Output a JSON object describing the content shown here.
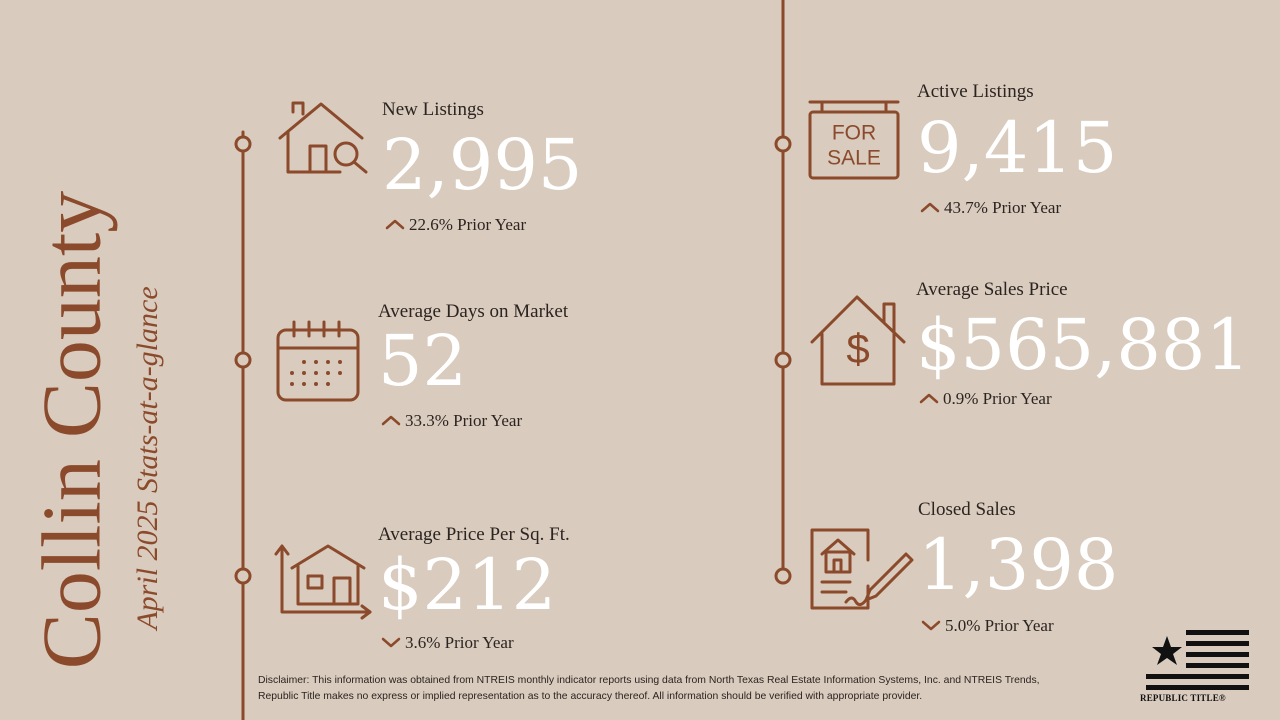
{
  "header": {
    "title": "Collin County",
    "subtitle": "April 2025 Stats-at-a-glance"
  },
  "stats": [
    {
      "label": "New Listings",
      "value": "2,995",
      "change": "22.6% Prior Year",
      "direction": "up"
    },
    {
      "label": "Average Days on Market",
      "value": "52",
      "change": "33.3% Prior Year",
      "direction": "up"
    },
    {
      "label": "Average Price Per Sq. Ft.",
      "value": "$212",
      "change": "3.6% Prior Year",
      "direction": "down"
    },
    {
      "label": "Active Listings",
      "value": "9,415",
      "change": "43.7% Prior Year",
      "direction": "up"
    },
    {
      "label": "Average Sales Price",
      "value": "$565,881",
      "change": "0.9% Prior Year",
      "direction": "up"
    },
    {
      "label": "Closed Sales",
      "value": "1,398",
      "change": "5.0% Prior Year",
      "direction": "down"
    }
  ],
  "disclaimer": "Disclaimer: This information was obtained from NTREIS monthly indicator reports using data from North Texas Real Estate Information Systems, Inc. and NTREIS Trends, Republic Title makes no express or implied representation as to the accuracy thereof. All information should be verified with appropriate provider.",
  "logo": {
    "text": "REPUBLIC TITLE®"
  }
}
